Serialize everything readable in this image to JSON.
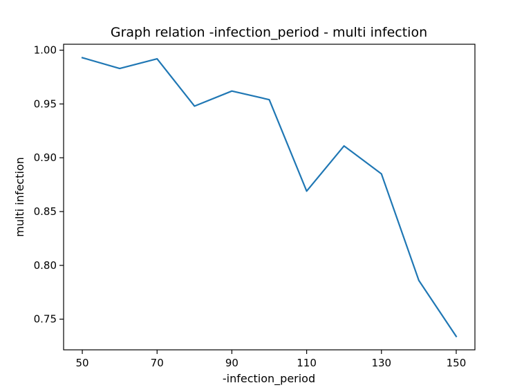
{
  "chart_data": {
    "type": "line",
    "title": "Graph relation -infection_period - multi infection",
    "xlabel": "-infection_period",
    "ylabel": "multi infection",
    "x": [
      50,
      60,
      70,
      80,
      90,
      100,
      110,
      120,
      130,
      140,
      150
    ],
    "series": [
      {
        "values": [
          0.993,
          0.983,
          0.992,
          0.948,
          0.962,
          0.954,
          0.869,
          0.911,
          0.885,
          0.786,
          0.734
        ],
        "color": "#1f77b4"
      }
    ],
    "xticks": [
      "50",
      "70",
      "90",
      "110",
      "130",
      "150"
    ],
    "yticks": [
      "0.75",
      "0.80",
      "0.85",
      "0.90",
      "0.95",
      "1.00"
    ],
    "xlim": [
      45,
      155
    ],
    "ylim": [
      0.7215,
      1.0055
    ],
    "grid": false,
    "legend": "none"
  }
}
